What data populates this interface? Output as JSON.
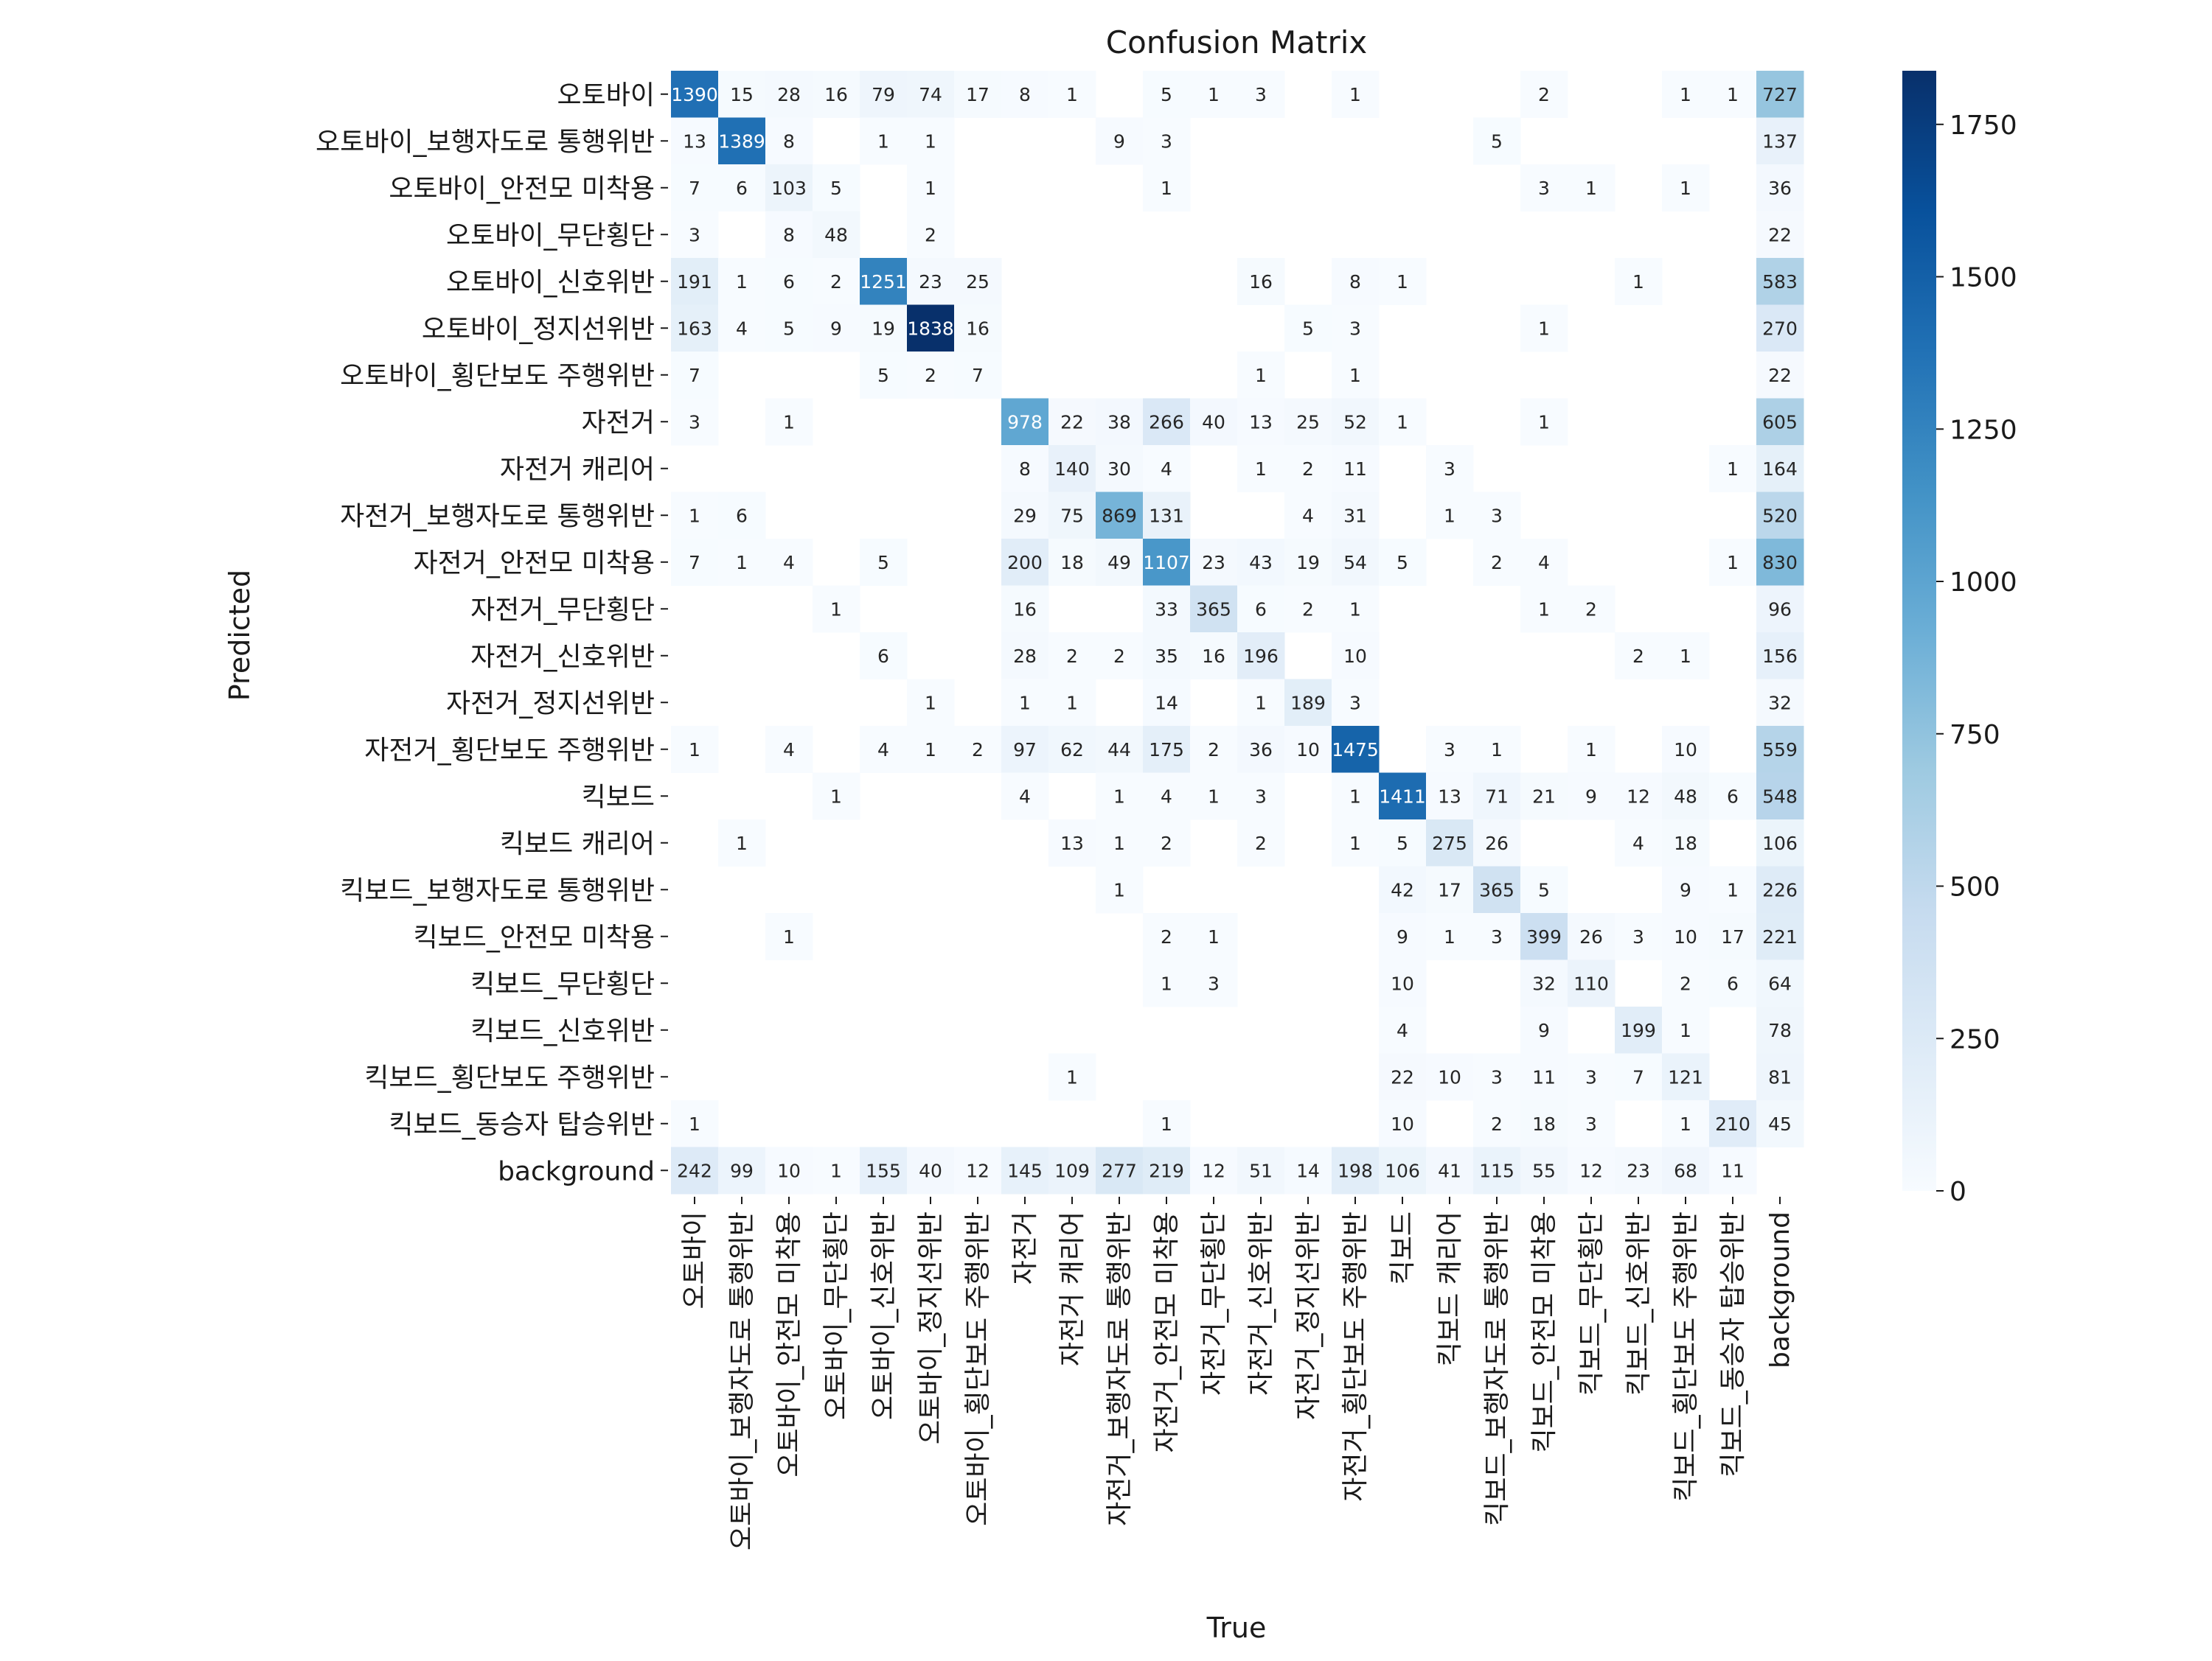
{
  "chart_data": {
    "type": "heatmap",
    "title": "Confusion Matrix",
    "xlabel": "True",
    "ylabel": "Predicted",
    "labels": [
      "오토바이",
      "오토바이_보행자도로 통행위반",
      "오토바이_안전모 미착용",
      "오토바이_무단횡단",
      "오토바이_신호위반",
      "오토바이_정지선위반",
      "오토바이_횡단보도 주행위반",
      "자전거",
      "자전거 캐리어",
      "자전거_보행자도로 통행위반",
      "자전거_안전모 미착용",
      "자전거_무단횡단",
      "자전거_신호위반",
      "자전거_정지선위반",
      "자전거_횡단보도 주행위반",
      "킥보드",
      "킥보드 캐리어",
      "킥보드_보행자도로 통행위반",
      "킥보드_안전모 미착용",
      "킥보드_무단횡단",
      "킥보드_신호위반",
      "킥보드_횡단보도 주행위반",
      "킥보드_동승자 탑승위반",
      "background"
    ],
    "colorbar": {
      "range": [
        0,
        1838
      ],
      "ticks": [
        0,
        250,
        500,
        750,
        1000,
        1250,
        1500,
        1750
      ]
    },
    "colors": {
      "low": "#f7fbff",
      "high": "#08306b"
    },
    "matrix": [
      [
        1390,
        15,
        28,
        16,
        79,
        74,
        17,
        8,
        1,
        0,
        5,
        1,
        3,
        0,
        1,
        0,
        0,
        0,
        2,
        0,
        0,
        1,
        1,
        727
      ],
      [
        13,
        1389,
        8,
        0,
        1,
        1,
        0,
        0,
        0,
        9,
        3,
        0,
        0,
        0,
        0,
        0,
        0,
        5,
        0,
        0,
        0,
        0,
        0,
        137
      ],
      [
        7,
        6,
        103,
        5,
        0,
        1,
        0,
        0,
        0,
        0,
        1,
        0,
        0,
        0,
        0,
        0,
        0,
        0,
        3,
        1,
        0,
        1,
        0,
        36
      ],
      [
        3,
        0,
        8,
        48,
        0,
        2,
        0,
        0,
        0,
        0,
        0,
        0,
        0,
        0,
        0,
        0,
        0,
        0,
        0,
        0,
        0,
        0,
        0,
        22
      ],
      [
        191,
        1,
        6,
        2,
        1251,
        23,
        25,
        0,
        0,
        0,
        0,
        0,
        16,
        0,
        8,
        1,
        0,
        0,
        0,
        0,
        1,
        0,
        0,
        583
      ],
      [
        163,
        4,
        5,
        9,
        19,
        1838,
        16,
        0,
        0,
        0,
        0,
        0,
        0,
        5,
        3,
        0,
        0,
        0,
        1,
        0,
        0,
        0,
        0,
        270
      ],
      [
        7,
        0,
        0,
        0,
        5,
        2,
        7,
        0,
        0,
        0,
        0,
        0,
        1,
        0,
        1,
        0,
        0,
        0,
        0,
        0,
        0,
        0,
        0,
        22
      ],
      [
        3,
        0,
        1,
        0,
        0,
        0,
        0,
        978,
        22,
        38,
        266,
        40,
        13,
        25,
        52,
        1,
        0,
        0,
        1,
        0,
        0,
        0,
        0,
        605
      ],
      [
        0,
        0,
        0,
        0,
        0,
        0,
        0,
        8,
        140,
        30,
        4,
        0,
        1,
        2,
        11,
        0,
        3,
        0,
        0,
        0,
        0,
        0,
        1,
        164
      ],
      [
        1,
        6,
        0,
        0,
        0,
        0,
        0,
        29,
        75,
        869,
        131,
        0,
        0,
        4,
        31,
        0,
        1,
        3,
        0,
        0,
        0,
        0,
        0,
        520
      ],
      [
        7,
        1,
        4,
        0,
        5,
        0,
        0,
        200,
        18,
        49,
        1107,
        23,
        43,
        19,
        54,
        5,
        0,
        2,
        4,
        0,
        0,
        0,
        1,
        830
      ],
      [
        0,
        0,
        0,
        1,
        0,
        0,
        0,
        16,
        0,
        0,
        33,
        365,
        6,
        2,
        1,
        0,
        0,
        0,
        1,
        2,
        0,
        0,
        0,
        96
      ],
      [
        0,
        0,
        0,
        0,
        6,
        0,
        0,
        28,
        2,
        2,
        35,
        16,
        196,
        0,
        10,
        0,
        0,
        0,
        0,
        0,
        2,
        1,
        0,
        156
      ],
      [
        0,
        0,
        0,
        0,
        0,
        1,
        0,
        1,
        1,
        0,
        14,
        0,
        1,
        189,
        3,
        0,
        0,
        0,
        0,
        0,
        0,
        0,
        0,
        32
      ],
      [
        1,
        0,
        4,
        0,
        4,
        1,
        2,
        97,
        62,
        44,
        175,
        2,
        36,
        10,
        1475,
        0,
        3,
        1,
        0,
        1,
        0,
        10,
        0,
        559
      ],
      [
        0,
        0,
        0,
        1,
        0,
        0,
        0,
        4,
        0,
        1,
        4,
        1,
        3,
        0,
        1,
        1411,
        13,
        71,
        21,
        9,
        12,
        48,
        6,
        548
      ],
      [
        0,
        1,
        0,
        0,
        0,
        0,
        0,
        0,
        13,
        1,
        2,
        0,
        2,
        0,
        1,
        5,
        275,
        26,
        0,
        0,
        4,
        18,
        0,
        106
      ],
      [
        0,
        0,
        0,
        0,
        0,
        0,
        0,
        0,
        0,
        1,
        0,
        0,
        0,
        0,
        0,
        42,
        17,
        365,
        5,
        0,
        0,
        9,
        1,
        226
      ],
      [
        0,
        0,
        1,
        0,
        0,
        0,
        0,
        0,
        0,
        0,
        2,
        1,
        0,
        0,
        0,
        9,
        1,
        3,
        399,
        26,
        3,
        10,
        17,
        221
      ],
      [
        0,
        0,
        0,
        0,
        0,
        0,
        0,
        0,
        0,
        0,
        1,
        3,
        0,
        0,
        0,
        10,
        0,
        0,
        32,
        110,
        0,
        2,
        6,
        64
      ],
      [
        0,
        0,
        0,
        0,
        0,
        0,
        0,
        0,
        0,
        0,
        0,
        0,
        0,
        0,
        0,
        4,
        0,
        0,
        9,
        0,
        199,
        1,
        0,
        78
      ],
      [
        0,
        0,
        0,
        0,
        0,
        0,
        0,
        0,
        1,
        0,
        0,
        0,
        0,
        0,
        0,
        22,
        10,
        3,
        11,
        3,
        7,
        121,
        0,
        81
      ],
      [
        1,
        0,
        0,
        0,
        0,
        0,
        0,
        0,
        0,
        0,
        1,
        0,
        0,
        0,
        0,
        10,
        0,
        2,
        18,
        3,
        0,
        1,
        210,
        45
      ],
      [
        242,
        99,
        10,
        1,
        155,
        40,
        12,
        145,
        109,
        277,
        219,
        12,
        51,
        14,
        198,
        106,
        41,
        115,
        55,
        12,
        23,
        68,
        11,
        0
      ]
    ]
  }
}
